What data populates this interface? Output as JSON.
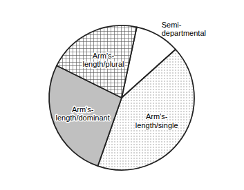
{
  "chart_data": {
    "type": "pie",
    "categories": [
      "Semi-\ndepartmental",
      "Arm's-\nlength/single",
      "Arm's-\nlength/dominant",
      "Arm's-\nlength/plural"
    ],
    "values": [
      10,
      42,
      27,
      21
    ],
    "colors": [
      "white",
      "white",
      "#c0c0c0",
      "white"
    ]
  }
}
